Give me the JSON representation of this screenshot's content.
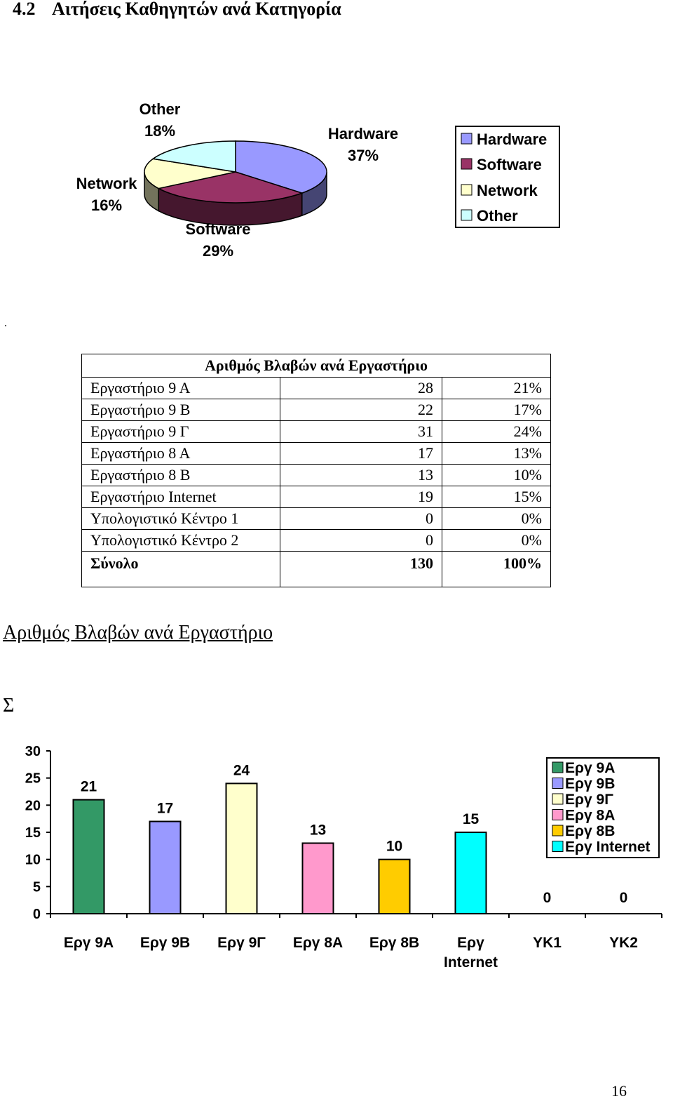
{
  "page": {
    "section_number": "4.2",
    "section_title": "Αιτήσεις Καθηγητών ανά Κατηγορία",
    "stray_mark": ".",
    "page_number": "16"
  },
  "pie_chart": {
    "labels": [
      {
        "name": "Hardware",
        "pct": "37%"
      },
      {
        "name": "Software",
        "pct": "29%"
      },
      {
        "name": "Network",
        "pct": "16%"
      },
      {
        "name": "Other",
        "pct": "18%"
      }
    ],
    "legend": [
      "Hardware",
      "Software",
      "Network",
      "Other"
    ],
    "colors": {
      "Hardware": "#9999ff",
      "Software": "#993366",
      "Network": "#ffffcc",
      "Other": "#ccffff"
    }
  },
  "table": {
    "caption": "Αριθμός Βλαβών ανά Εργαστήριο",
    "rows": [
      {
        "name": "Εργαστήριο 9 Α",
        "value": "28",
        "pct": "21%"
      },
      {
        "name": "Εργαστήριο 9 Β",
        "value": "22",
        "pct": "17%"
      },
      {
        "name": "Εργαστήριο 9 Γ",
        "value": "31",
        "pct": "24%"
      },
      {
        "name": "Εργαστήριο 8 Α",
        "value": "17",
        "pct": "13%"
      },
      {
        "name": "Εργαστήριο 8 Β",
        "value": "13",
        "pct": "10%"
      },
      {
        "name": "Εργαστήριο Internet",
        "value": "19",
        "pct": "15%"
      },
      {
        "name": "Υπολογιστικό Κέντρο 1",
        "value": "0",
        "pct": "0%"
      },
      {
        "name": "Υπολογιστικό Κέντρο 2",
        "value": "0",
        "pct": "0%"
      }
    ],
    "total": {
      "name": "Σύνολο",
      "value": "130",
      "pct": "100%"
    }
  },
  "bar_section": {
    "title": "Αριθμός Βλαβών ανά Εργαστήριο",
    "sigma": "Σ"
  },
  "chart_data": [
    {
      "type": "pie",
      "labels": [
        "Hardware",
        "Software",
        "Network",
        "Other"
      ],
      "values": [
        37,
        29,
        16,
        18
      ],
      "value_labels": [
        "37%",
        "29%",
        "16%",
        "18%"
      ],
      "legend": "right",
      "colors": [
        "#9999ff",
        "#993366",
        "#ffffcc",
        "#ccffff"
      ]
    },
    {
      "type": "bar",
      "categories": [
        "Εργ 9Α",
        "Εργ 9Β",
        "Εργ 9Γ",
        "Εργ 8Α",
        "Εργ 8Β",
        "Εργ Internet",
        "ΥΚ1",
        "ΥΚ2"
      ],
      "tick_lines": [
        [
          "Εργ 9Α"
        ],
        [
          "Εργ 9Β"
        ],
        [
          "Εργ 9Γ"
        ],
        [
          "Εργ 8Α"
        ],
        [
          "Εργ 8Β"
        ],
        [
          "Εργ",
          "Internet"
        ],
        [
          "ΥΚ1"
        ],
        [
          "ΥΚ2"
        ]
      ],
      "values": [
        21,
        17,
        24,
        13,
        10,
        15,
        0,
        0
      ],
      "colors": [
        "#339966",
        "#9999ff",
        "#ffffcc",
        "#ff99cc",
        "#ffcc00",
        "#00ffff",
        "#ffffff",
        "#ffffff"
      ],
      "legend_entries": [
        "Εργ 9Α",
        "Εργ 9Β",
        "Εργ 9Γ",
        "Εργ 8Α",
        "Εργ 8Β",
        "Εργ Internet"
      ],
      "ylim": [
        0,
        30
      ],
      "yticks": [
        0,
        5,
        10,
        15,
        20,
        25,
        30
      ],
      "legend": "top-right",
      "grid": false
    }
  ]
}
